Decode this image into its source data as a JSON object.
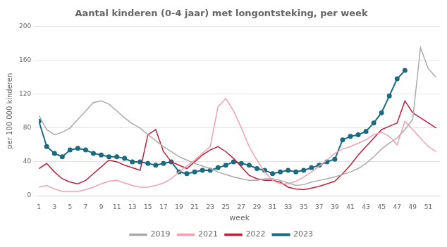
{
  "chart_data": {
    "type": "line",
    "title": "Aantal kinderen (0-4 jaar) met longontsteking, per week",
    "xlabel": "week",
    "ylabel": "per 100 000 kinderen",
    "x": [
      1,
      2,
      3,
      4,
      5,
      6,
      7,
      8,
      9,
      10,
      11,
      12,
      13,
      14,
      15,
      16,
      17,
      18,
      19,
      20,
      21,
      22,
      23,
      24,
      25,
      26,
      27,
      28,
      29,
      30,
      31,
      32,
      33,
      34,
      35,
      36,
      37,
      38,
      39,
      40,
      41,
      42,
      43,
      44,
      45,
      46,
      47,
      48,
      49,
      50,
      51,
      52
    ],
    "series": [
      {
        "name": "2019",
        "color": "#aaaaaa",
        "values": [
          95,
          78,
          72,
          75,
          80,
          90,
          100,
          110,
          112,
          108,
          100,
          92,
          85,
          80,
          72,
          65,
          58,
          52,
          46,
          42,
          38,
          35,
          32,
          28,
          25,
          22,
          20,
          18,
          18,
          20,
          20,
          18,
          15,
          12,
          13,
          16,
          18,
          20,
          22,
          25,
          28,
          32,
          38,
          46,
          55,
          62,
          68,
          78,
          90,
          175,
          150,
          140
        ]
      },
      {
        "name": "2021",
        "color": "#f4a0b0",
        "values": [
          10,
          12,
          8,
          5,
          5,
          5,
          7,
          10,
          14,
          17,
          18,
          15,
          12,
          10,
          10,
          12,
          15,
          20,
          28,
          35,
          42,
          50,
          58,
          105,
          115,
          100,
          80,
          58,
          42,
          28,
          18,
          14,
          14,
          17,
          22,
          28,
          35,
          42,
          50,
          55,
          58,
          62,
          66,
          72,
          75,
          70,
          60,
          88,
          78,
          68,
          58,
          52
        ]
      },
      {
        "name": "2022",
        "color": "#c0203a",
        "values": [
          32,
          38,
          28,
          20,
          16,
          14,
          18,
          26,
          34,
          42,
          40,
          36,
          33,
          30,
          72,
          78,
          52,
          40,
          36,
          32,
          40,
          48,
          54,
          58,
          52,
          44,
          34,
          24,
          20,
          18,
          18,
          16,
          10,
          8,
          7,
          9,
          11,
          14,
          17,
          26,
          36,
          48,
          58,
          68,
          78,
          82,
          86,
          112,
          98,
          92,
          86,
          80
        ]
      },
      {
        "name": "2023",
        "color": "#1a6b80",
        "marker": "circle",
        "values": [
          88,
          58,
          50,
          46,
          54,
          56,
          54,
          50,
          48,
          46,
          46,
          44,
          40,
          40,
          38,
          36,
          38,
          40,
          28,
          26,
          28,
          30,
          30,
          33,
          36,
          40,
          38,
          36,
          32,
          30,
          26,
          28,
          30,
          28,
          30,
          33,
          36,
          40,
          43,
          66,
          70,
          72,
          76,
          86,
          98,
          118,
          138,
          148,
          null,
          null,
          null,
          null
        ]
      }
    ],
    "xlim": [
      1,
      52.5
    ],
    "xticks": [
      1,
      3,
      5,
      7,
      9,
      11,
      13,
      15,
      17,
      19,
      21,
      23,
      25,
      27,
      29,
      31,
      33,
      35,
      37,
      39,
      41,
      43,
      45,
      47,
      49,
      51
    ],
    "ylim": [
      0,
      200
    ],
    "yticks": [
      0,
      40,
      80,
      120,
      160,
      200
    ],
    "grid": "y",
    "legend": "bottom"
  }
}
